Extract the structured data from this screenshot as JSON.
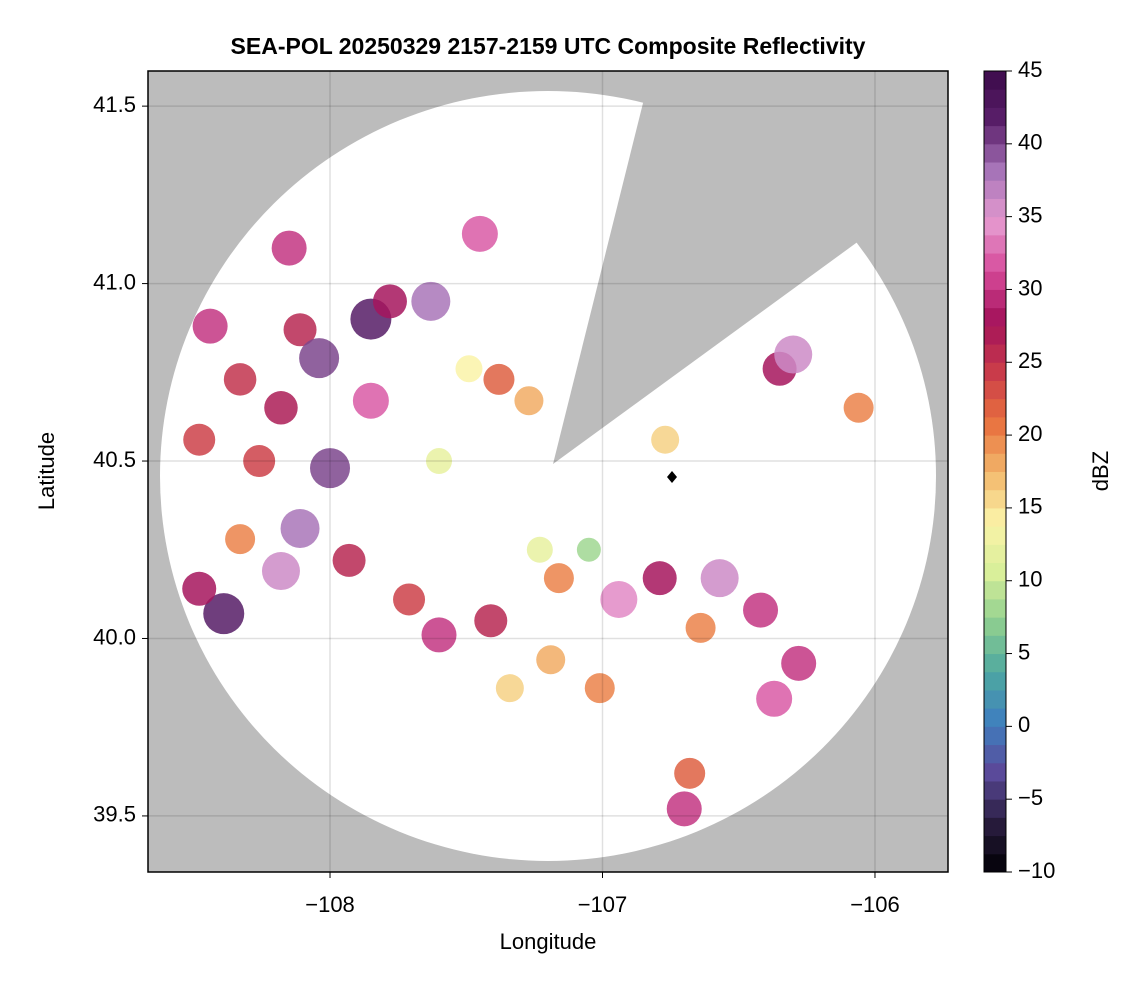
{
  "chart_data": {
    "type": "scatter",
    "title": "SEA-POL 20250329 2157-2159 UTC Composite Reflectivity",
    "x_label": "Longitude",
    "y_label": "Latitude",
    "xlim": [
      -108.668,
      -105.732
    ],
    "ylim": [
      39.342,
      41.599
    ],
    "xticks": [
      {
        "value": -108,
        "label": "−108"
      },
      {
        "value": -107,
        "label": "−107"
      },
      {
        "value": -106,
        "label": "−106"
      }
    ],
    "yticks": [
      39.5,
      {
        "value": 40,
        "label": "40.0"
      },
      40.5,
      {
        "value": 41,
        "label": "41.0"
      },
      41.5
    ],
    "grid": true,
    "x": [
      -108.44,
      -108.33,
      -108.11,
      -108.04,
      -107.85,
      -107.78,
      -107.63,
      -108.18,
      -108.48,
      -108.0,
      -108.11,
      -108.33,
      -108.18,
      -108.39,
      -108.48,
      -107.93,
      -107.71,
      -107.6,
      -107.41,
      -107.19,
      -107.34,
      -107.23,
      -107.05,
      -107.16,
      -106.94,
      -106.79,
      -106.57,
      -106.42,
      -106.64,
      -106.37,
      -106.68,
      -106.7,
      -106.35,
      -106.3,
      -106.06,
      -106.77,
      -107.38,
      -107.27,
      -107.49,
      -107.45,
      -108.15,
      -106.28,
      -107.6,
      -107.01,
      -108.26,
      -107.85
    ],
    "y": [
      40.88,
      40.73,
      40.87,
      40.79,
      40.9,
      40.95,
      40.95,
      40.65,
      40.56,
      40.48,
      40.31,
      40.28,
      40.19,
      40.07,
      40.14,
      40.22,
      40.11,
      40.01,
      40.05,
      39.94,
      39.86,
      40.25,
      40.25,
      40.17,
      40.11,
      40.17,
      40.17,
      40.08,
      40.03,
      39.83,
      39.62,
      39.52,
      40.76,
      40.8,
      40.65,
      40.56,
      40.73,
      40.67,
      40.76,
      41.14,
      41.1,
      39.93,
      40.5,
      39.86,
      40.5,
      40.67
    ],
    "values": [
      30,
      25,
      26,
      40,
      42,
      28,
      38,
      27,
      24,
      40,
      38,
      20,
      36,
      42,
      28,
      26,
      24,
      30,
      26,
      18,
      16,
      12,
      8,
      20,
      34,
      28,
      36,
      30,
      20,
      32,
      22,
      30,
      28,
      36,
      20,
      16,
      22,
      18,
      14,
      32,
      30,
      30,
      12,
      20,
      24,
      32
    ],
    "colorbar": {
      "label": "dBZ",
      "lim": [
        -10,
        45
      ],
      "ticks": [
        {
          "value": -10,
          "label": "−10"
        },
        {
          "value": -5,
          "label": "−5"
        },
        0,
        5,
        10,
        15,
        20,
        25,
        30,
        35,
        40,
        45
      ],
      "colors": [
        "#000004",
        "#2a1d3f",
        "#5a4a9a",
        "#3f7fbf",
        "#4ea8a0",
        "#8fcf8f",
        "#d9ef9a",
        "#fbf3a8",
        "#f2b66a",
        "#e8703e",
        "#c93b4a",
        "#a3125a",
        "#d64a9a",
        "#e59ad0",
        "#a774b8",
        "#5a1f6a",
        "#3b0a4a"
      ]
    }
  }
}
